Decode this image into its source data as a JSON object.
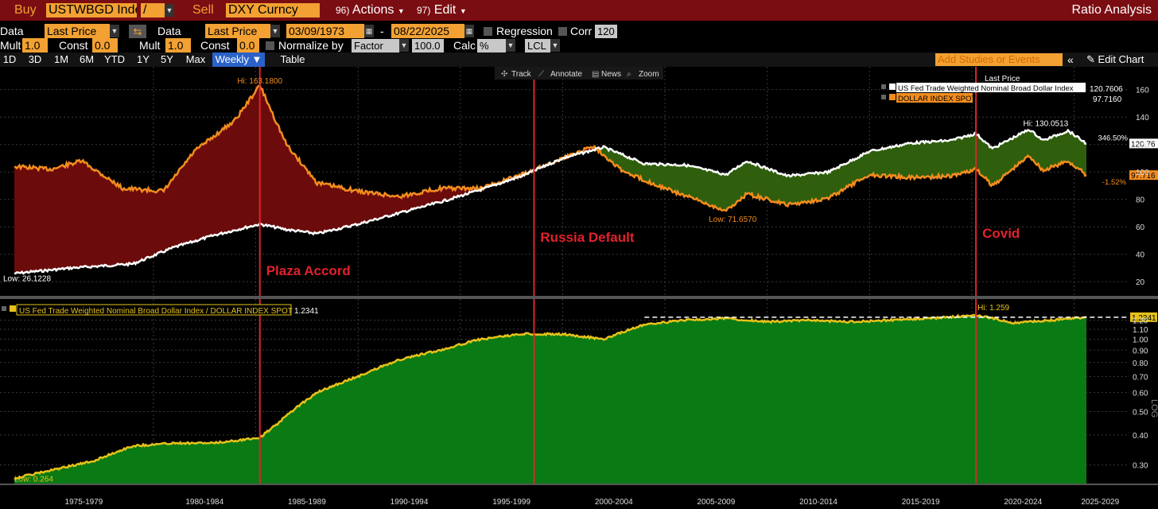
{
  "topbar": {
    "buy_label": "Buy",
    "buy_ticker": "USTWBGD Inde",
    "slash": "/",
    "sell_label": "Sell",
    "sell_ticker": "DXY Curncy",
    "actions_num": "96)",
    "actions_label": "Actions",
    "edit_num": "97)",
    "edit_label": "Edit",
    "title": "Ratio Analysis"
  },
  "row1": {
    "data1_label": "Data",
    "data1_value": "Last Price",
    "data2_label": "Data",
    "data2_value": "Last Price",
    "start_date": "03/09/1973",
    "dash": "-",
    "end_date": "08/22/2025",
    "regression_label": "Regression",
    "corr_label": "Corr",
    "corr_value": "120"
  },
  "row2": {
    "mult1_label": "Mult",
    "mult1_value": "1.0",
    "const1_label": "Const",
    "const1_value": "0.0",
    "mult2_label": "Mult",
    "mult2_value": "1.0",
    "const2_label": "Const",
    "const2_value": "0.0",
    "normalize_label": "Normalize by",
    "normalize_value": "Factor",
    "factor_value": "100.0",
    "calc_label": "Calc",
    "calc_value": "%",
    "lcl_value": "LCL"
  },
  "tabs": [
    "1D",
    "3D",
    "1M",
    "6M",
    "YTD",
    "1Y",
    "5Y",
    "Max",
    "Weekly ▼",
    "Table"
  ],
  "add_studies": "Add Studies or Events",
  "edit_chart": "Edit Chart",
  "chart_toolbar": {
    "track": "Track",
    "annotate": "Annotate",
    "news": "News",
    "zoom": "Zoom"
  },
  "colors": {
    "white_series": "#ffffff",
    "orange_series": "#f28c1e",
    "red_fill": "#6b0b0b",
    "green_fill": "#2f5e0c",
    "ratio_fill": "#0a7a14",
    "ratio_line": "#e6c21a",
    "event_line": "#e0222c"
  },
  "chart_data": [
    {
      "type": "line",
      "legend_header": "Last Price",
      "y_ticks": [
        20,
        40,
        60,
        80,
        100,
        120,
        140,
        160
      ],
      "y_range": [
        12,
        172
      ],
      "series": [
        {
          "name": "US Fed Trade Weighted Nominal Broad Dollar Index",
          "last": "120.7606",
          "last_tag": "120.76",
          "pct_tag": "346.50%",
          "points": [
            [
              1973.2,
              26
            ],
            [
              1976,
              30
            ],
            [
              1979,
              33
            ],
            [
              1981,
              45
            ],
            [
              1983,
              54
            ],
            [
              1985.2,
              62
            ],
            [
              1986.5,
              58
            ],
            [
              1988,
              55
            ],
            [
              1990,
              62
            ],
            [
              1992,
              70
            ],
            [
              1994,
              78
            ],
            [
              1996,
              87
            ],
            [
              1998,
              97
            ],
            [
              2000,
              110
            ],
            [
              2002,
              118
            ],
            [
              2004,
              106
            ],
            [
              2006,
              105
            ],
            [
              2008,
              98
            ],
            [
              2009,
              108
            ],
            [
              2011,
              97
            ],
            [
              2013,
              100
            ],
            [
              2015,
              115
            ],
            [
              2017,
              121
            ],
            [
              2019,
              123
            ],
            [
              2020.2,
              128
            ],
            [
              2021,
              117
            ],
            [
              2022.8,
              131
            ],
            [
              2023.5,
              123
            ],
            [
              2024.7,
              130.05
            ],
            [
              2025.6,
              120.76
            ]
          ]
        },
        {
          "name": "DOLLAR INDEX SPOT",
          "last": "97.7160",
          "last_tag": "97.716",
          "pct_tag": "-1.52%",
          "points": [
            [
              1973.2,
              104
            ],
            [
              1975,
              102
            ],
            [
              1976.5,
              108
            ],
            [
              1978.5,
              88
            ],
            [
              1980.5,
              86
            ],
            [
              1982,
              115
            ],
            [
              1984,
              138
            ],
            [
              1985.2,
              163.18
            ],
            [
              1986.5,
              120
            ],
            [
              1988,
              92
            ],
            [
              1990,
              86
            ],
            [
              1992,
              82
            ],
            [
              1994,
              88
            ],
            [
              1996,
              88
            ],
            [
              1998,
              98
            ],
            [
              2000,
              110
            ],
            [
              2001.5,
              119
            ],
            [
              2003,
              100
            ],
            [
              2005,
              88
            ],
            [
              2008,
              71.657
            ],
            [
              2009,
              84
            ],
            [
              2011,
              76
            ],
            [
              2013,
              81
            ],
            [
              2015,
              98
            ],
            [
              2017,
              96
            ],
            [
              2019,
              97
            ],
            [
              2020.2,
              102
            ],
            [
              2021,
              90
            ],
            [
              2022.8,
              112
            ],
            [
              2023.5,
              101
            ],
            [
              2024.7,
              108
            ],
            [
              2025.6,
              97.716
            ]
          ]
        }
      ],
      "annotations": {
        "hi_orange": "Hi: 163.1800",
        "low_white": "Low: 26.1228",
        "low_orange": "Low: 71.6570",
        "hi_white": "Hi: 130.0513"
      }
    },
    {
      "type": "area",
      "legend": "US Fed Trade Weighted Nominal Broad Dollar Index / DOLLAR INDEX SPOT",
      "legend_value": "1.2341",
      "y_scale": "log",
      "y_axis_label": "LOG",
      "y_ticks": [
        0.3,
        0.4,
        0.5,
        0.6,
        0.7,
        0.8,
        0.9,
        1.0,
        1.1,
        1.2
      ],
      "y_range": [
        0.255,
        1.3
      ],
      "last_tag": "1.2341",
      "reference_line": 1.2341,
      "annotations": {
        "hi": "Hi: 1.259",
        "low": "Low: 0.264"
      },
      "points": [
        [
          1973.2,
          0.264
        ],
        [
          1975,
          0.285
        ],
        [
          1977,
          0.31
        ],
        [
          1979,
          0.36
        ],
        [
          1981,
          0.37
        ],
        [
          1983,
          0.37
        ],
        [
          1985.2,
          0.39
        ],
        [
          1986,
          0.44
        ],
        [
          1988,
          0.6
        ],
        [
          1990,
          0.7
        ],
        [
          1992,
          0.82
        ],
        [
          1994,
          0.9
        ],
        [
          1996,
          1.0
        ],
        [
          1998,
          1.05
        ],
        [
          2000,
          1.05
        ],
        [
          2002,
          1.0
        ],
        [
          2004,
          1.15
        ],
        [
          2006,
          1.2
        ],
        [
          2008,
          1.22
        ],
        [
          2010,
          1.18
        ],
        [
          2012,
          1.2
        ],
        [
          2014,
          1.18
        ],
        [
          2016,
          1.2
        ],
        [
          2018,
          1.22
        ],
        [
          2020.2,
          1.259
        ],
        [
          2022,
          1.17
        ],
        [
          2024,
          1.2
        ],
        [
          2025.6,
          1.2341
        ]
      ]
    }
  ],
  "x_axis": {
    "labels": [
      "1975-1979",
      "1980-1984",
      "1985-1989",
      "1990-1994",
      "1995-1999",
      "2000-2004",
      "2005-2009",
      "2010-2014",
      "2015-2019",
      "2020-2024",
      "2025-2029"
    ],
    "dividers": [
      1980,
      1985,
      1990,
      1995,
      2000,
      2005,
      2010,
      2015,
      2020,
      2025
    ]
  },
  "events": [
    {
      "label": "Plaza Accord",
      "x": 1985.2
    },
    {
      "label": "Russia Default",
      "x": 1998.6
    },
    {
      "label": "Covid",
      "x": 2020.2
    }
  ]
}
